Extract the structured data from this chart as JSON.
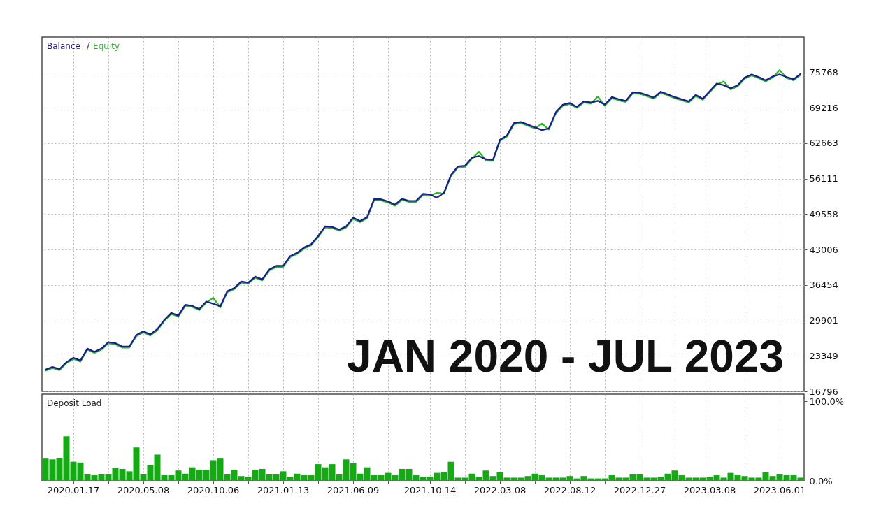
{
  "chart_data": [
    {
      "type": "line",
      "legend": "top left",
      "grid": true,
      "tick_labels": "y",
      "annotations": [
        "JAN 2020 - JUL 2023"
      ],
      "categories": [
        null,
        null,
        null,
        null,
        "2020.01.17",
        null,
        null,
        null,
        null,
        null,
        null,
        null,
        null,
        null,
        "2020.05.08",
        null,
        null,
        null,
        null,
        null,
        null,
        null,
        null,
        null,
        "2020.10.06",
        null,
        null,
        null,
        null,
        null,
        null,
        null,
        null,
        null,
        "2021.01.13",
        null,
        null,
        null,
        null,
        null,
        null,
        null,
        null,
        null,
        "2021.06.09",
        null,
        null,
        null,
        null,
        null,
        null,
        null,
        null,
        null,
        null,
        "2021.10.14",
        null,
        null,
        null,
        null,
        null,
        null,
        null,
        null,
        null,
        "2022.03.08",
        null,
        null,
        null,
        null,
        null,
        null,
        null,
        null,
        null,
        "2022.08.12",
        null,
        null,
        null,
        null,
        null,
        null,
        null,
        null,
        null,
        "2022.12.27",
        null,
        null,
        null,
        null,
        null,
        null,
        null,
        null,
        null,
        "2023.03.08",
        null,
        null,
        null,
        null,
        null,
        null,
        null,
        null,
        null,
        "2023.06.01",
        null,
        null,
        null
      ],
      "ylim": [
        16796,
        82300
      ],
      "yticks": [
        16796,
        23349,
        29901,
        36454,
        43006,
        49558,
        56111,
        62663,
        69216,
        75768
      ],
      "series": [
        {
          "name": "Balance",
          "color": "#1b1b8f",
          "values": [
            20800,
            21300,
            20900,
            22200,
            23000,
            22500,
            24700,
            24100,
            24700,
            25900,
            25700,
            25100,
            25100,
            27200,
            27900,
            27300,
            28300,
            30000,
            31300,
            30800,
            32800,
            32600,
            32000,
            33400,
            33000,
            32500,
            35300,
            35900,
            37100,
            36900,
            38000,
            37500,
            39300,
            40000,
            40000,
            41800,
            42400,
            43400,
            44000,
            45500,
            47300,
            47200,
            46700,
            47300,
            48900,
            48300,
            49000,
            52300,
            52300,
            51900,
            51300,
            52400,
            52000,
            52000,
            53300,
            53200,
            52600,
            53500,
            56800,
            58400,
            58500,
            60000,
            60300,
            59700,
            59600,
            63300,
            64100,
            66400,
            66600,
            66100,
            65600,
            65100,
            65400,
            68400,
            69800,
            70100,
            69400,
            70400,
            70200,
            70500,
            69800,
            71200,
            70800,
            70500,
            72100,
            72000,
            71600,
            71100,
            72200,
            71700,
            71200,
            70800,
            70400,
            71600,
            70900,
            72300,
            73700,
            73400,
            72800,
            73400,
            74800,
            75400,
            74900,
            74300,
            75000,
            75400,
            74900,
            74500,
            75500
          ]
        },
        {
          "name": "Equity",
          "color": "#25b825",
          "values": [
            20600,
            21100,
            20700,
            22000,
            22800,
            22300,
            24500,
            23900,
            24500,
            25700,
            25500,
            24900,
            24900,
            27000,
            27700,
            27100,
            28100,
            29800,
            31100,
            30600,
            32600,
            32400,
            31800,
            33200,
            34100,
            32300,
            35100,
            35700,
            36900,
            36700,
            37800,
            37300,
            39100,
            39800,
            39800,
            41600,
            42200,
            43200,
            43800,
            45300,
            47100,
            47000,
            46500,
            47100,
            48700,
            48100,
            48800,
            52100,
            52100,
            51700,
            51100,
            52200,
            51800,
            51800,
            53100,
            53000,
            53500,
            53300,
            56600,
            58200,
            58300,
            59800,
            61100,
            59500,
            59400,
            63100,
            63900,
            66200,
            66400,
            65900,
            65400,
            66300,
            65200,
            68200,
            69600,
            69900,
            69200,
            70200,
            70000,
            71300,
            69600,
            71000,
            70600,
            70300,
            71900,
            71800,
            71400,
            70900,
            72000,
            71500,
            71000,
            70600,
            70200,
            71400,
            70700,
            72100,
            73500,
            74100,
            72600,
            73200,
            74600,
            75200,
            74700,
            74100,
            74800,
            76200,
            74700,
            74300,
            75300
          ]
        }
      ]
    },
    {
      "type": "bar",
      "title": "Deposit Load",
      "grid": "x",
      "color": "#15a915",
      "categories": [
        null,
        null,
        null,
        null,
        "2020.01.17",
        null,
        null,
        null,
        null,
        null,
        null,
        null,
        null,
        null,
        "2020.05.08",
        null,
        null,
        null,
        null,
        null,
        null,
        null,
        null,
        null,
        "2020.10.06",
        null,
        null,
        null,
        null,
        null,
        null,
        null,
        null,
        null,
        "2021.01.13",
        null,
        null,
        null,
        null,
        null,
        null,
        null,
        null,
        null,
        "2021.06.09",
        null,
        null,
        null,
        null,
        null,
        null,
        null,
        null,
        null,
        null,
        "2021.10.14",
        null,
        null,
        null,
        null,
        null,
        null,
        null,
        null,
        null,
        "2022.03.08",
        null,
        null,
        null,
        null,
        null,
        null,
        null,
        null,
        null,
        "2022.08.12",
        null,
        null,
        null,
        null,
        null,
        null,
        null,
        null,
        null,
        "2022.12.27",
        null,
        null,
        null,
        null,
        null,
        null,
        null,
        null,
        null,
        "2023.03.08",
        null,
        null,
        null,
        null,
        null,
        null,
        null,
        null,
        null,
        "2023.06.01",
        null,
        null,
        null
      ],
      "ylim": [
        0,
        109
      ],
      "yticks": [
        {
          "value": 0,
          "label": "0.0%"
        },
        {
          "value": 100,
          "label": "100.0%"
        }
      ],
      "values": [
        28,
        27,
        29,
        56,
        24,
        23,
        8,
        7,
        8,
        8,
        16,
        15,
        12,
        42,
        8,
        20,
        33,
        7,
        7,
        13,
        9,
        17,
        14,
        14,
        26,
        28,
        8,
        14,
        6,
        5,
        14,
        15,
        8,
        8,
        12,
        5,
        9,
        7,
        7,
        21,
        17,
        21,
        8,
        27,
        22,
        9,
        17,
        7,
        7,
        10,
        7,
        15,
        15,
        7,
        5,
        5,
        10,
        11,
        24,
        4,
        4,
        9,
        5,
        13,
        6,
        11,
        4,
        4,
        4,
        6,
        9,
        7,
        4,
        4,
        4,
        6,
        3,
        6,
        3,
        3,
        3,
        7,
        4,
        4,
        8,
        8,
        4,
        4,
        5,
        9,
        13,
        7,
        4,
        4,
        4,
        5,
        7,
        4,
        10,
        7,
        6,
        4,
        4,
        11,
        6,
        8,
        7,
        7,
        4
      ]
    }
  ]
}
